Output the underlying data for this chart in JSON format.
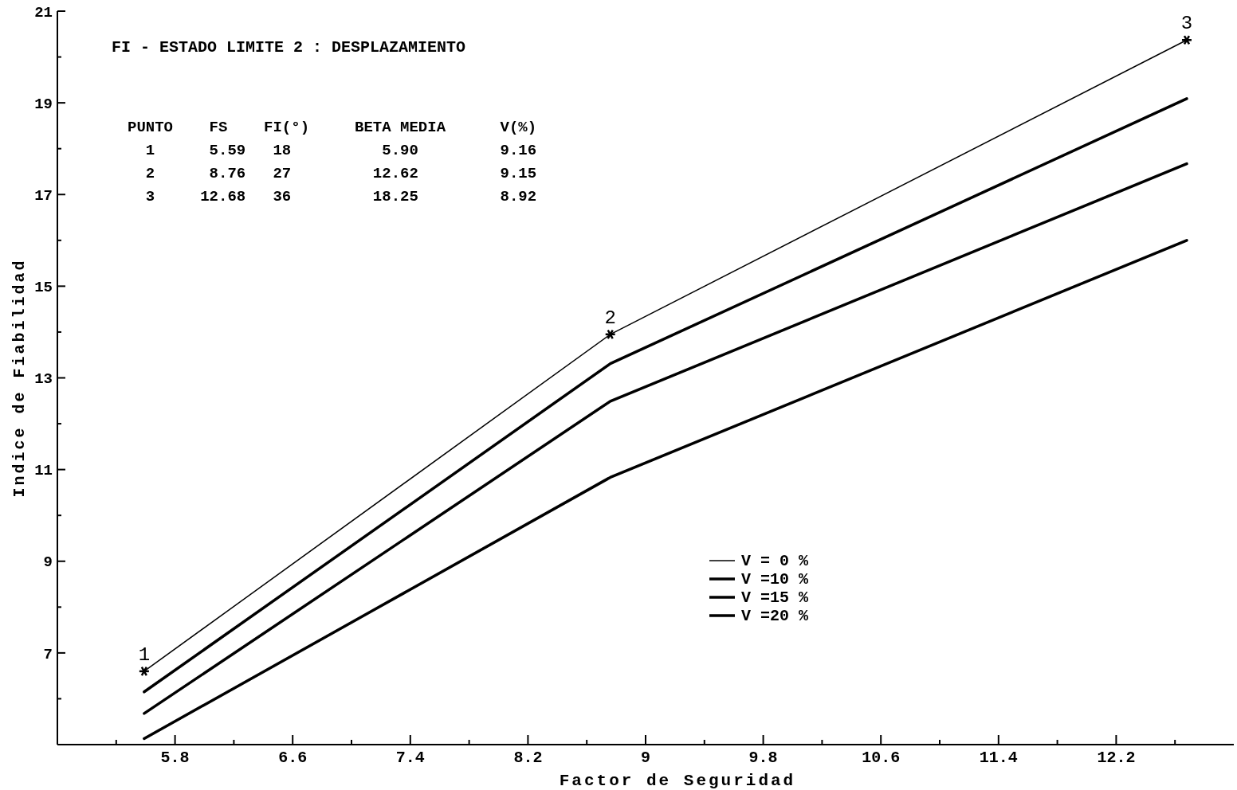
{
  "chart_data": {
    "type": "line",
    "title": "FI - ESTADO LIMITE 2 : DESPLAZAMIENTO",
    "xlabel": "Factor de Seguridad",
    "ylabel": "Indice de Fiabilidad",
    "x": [
      5.59,
      8.76,
      12.68
    ],
    "series": [
      {
        "name": "V = 0 %",
        "color": "#000000",
        "values": [
          6.6,
          13.95,
          20.37
        ],
        "marker": "cross"
      },
      {
        "name": "V =10 %",
        "color": "#000000",
        "values": [
          6.15,
          13.31,
          19.09
        ]
      },
      {
        "name": "V =15 %",
        "color": "#000000",
        "values": [
          5.68,
          12.49,
          17.67
        ]
      },
      {
        "name": "V =20 %",
        "color": "#000000",
        "values": [
          5.13,
          10.83,
          16.0
        ]
      }
    ],
    "xlim": [
      5,
      13
    ],
    "xticks": [
      {
        "value": 5.4,
        "label": null
      },
      5.8,
      {
        "value": 6.2,
        "label": null
      },
      6.6,
      {
        "value": 7.0,
        "label": null
      },
      7.4,
      {
        "value": 7.8,
        "label": null
      },
      8.2,
      {
        "value": 8.6,
        "label": null
      },
      9,
      {
        "value": 9.4,
        "label": null
      },
      9.8,
      {
        "value": 10.2,
        "label": null
      },
      10.6,
      {
        "value": 11.0,
        "label": null
      },
      11.4,
      {
        "value": 11.8,
        "label": null
      },
      12.2,
      {
        "value": 12.6,
        "label": null
      }
    ],
    "ylim": [
      5,
      21
    ],
    "yticks": [
      {
        "value": 6,
        "label": null
      },
      7,
      {
        "value": 8,
        "label": null
      },
      9,
      {
        "value": 10,
        "label": null
      },
      11,
      {
        "value": 12,
        "label": null
      },
      13,
      {
        "value": 14,
        "label": null
      },
      15,
      {
        "value": 16,
        "label": null
      },
      17,
      {
        "value": 18,
        "label": null
      },
      19,
      {
        "value": 20,
        "label": null
      },
      21
    ],
    "annotations": [
      "PUNTO    FS    FI(°)     BETA MEDIA      V(%)",
      "  1      5.59   18          5.90         9.16",
      "  2      8.76   27         12.62         9.15",
      "  3     12.68   36         18.25         8.92",
      {
        "text": "1",
        "x": 5.59,
        "y": 6.6
      },
      {
        "text": "2",
        "x": 8.76,
        "y": 13.95
      },
      {
        "text": "3",
        "x": 12.68,
        "y": 20.37
      }
    ],
    "legend": "bottom right",
    "grid": false,
    "line_style": "solid"
  }
}
